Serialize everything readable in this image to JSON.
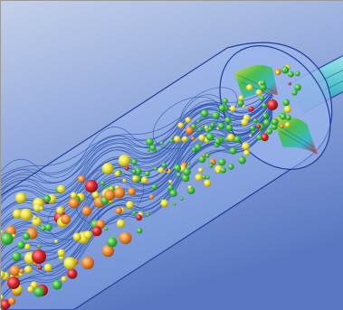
{
  "scene": {
    "subject": "cfd-particle-flow-cylinder-visualization",
    "colors": {
      "background_top": "#b6c6e6",
      "background_bottom": "#5f7fc8",
      "cylinder_fill": "#8fb0ea",
      "cylinder_edge": "#1f3f9a",
      "streamline": "#1a3f9e",
      "particle_green": "#3fbf3f",
      "particle_yellow": "#e8e030",
      "particle_orange": "#f08a2a",
      "particle_red": "#d8262a",
      "inlet_pipe": "#6fd4d8"
    }
  }
}
